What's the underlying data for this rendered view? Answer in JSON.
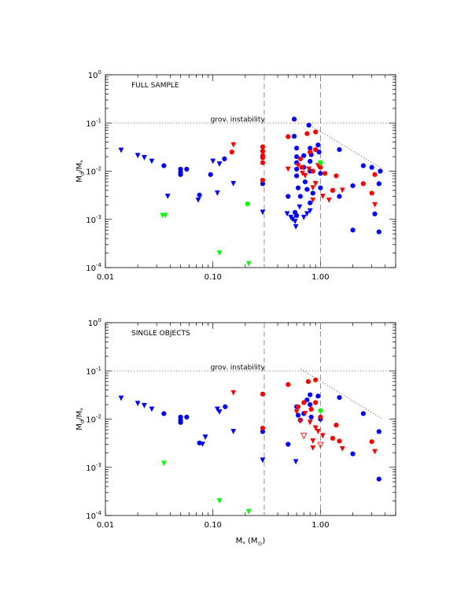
{
  "chart_data": [
    {
      "type": "scatter",
      "annotation": "FULL SAMPLE",
      "ylabel": "M_d/M_*",
      "xlabel": "",
      "xscale": "log",
      "yscale": "log",
      "xlim": [
        0.01,
        5.0
      ],
      "ylim": [
        0.0001,
        1.0
      ],
      "x_tick_labels": [
        {
          "value": 0.01,
          "label": "0.01"
        },
        {
          "value": 0.1,
          "label": "0.10"
        },
        {
          "value": 1.0,
          "label": "1.00"
        }
      ],
      "y_tick_labels": [
        {
          "value": 1.0,
          "label": "10^0"
        },
        {
          "value": 0.1,
          "label": "10^-1"
        },
        {
          "value": 0.01,
          "label": "10^-2"
        },
        {
          "value": 0.001,
          "label": "10^-3"
        },
        {
          "value": 0.0001,
          "label": "10^-4"
        }
      ],
      "hline": {
        "y": 0.1,
        "label": "grov. instability"
      },
      "vlines": [
        0.3,
        1.0
      ],
      "diagonal_line": [
        [
          0.8,
          0.09
        ],
        [
          3.8,
          0.011
        ]
      ],
      "colors": {
        "blue": "#0000ff",
        "red": "#ff0000",
        "green": "#00ff00"
      },
      "series": [
        {
          "color": "blue",
          "marker": "circle",
          "points": [
            [
              0.035,
              0.013
            ],
            [
              0.05,
              0.011
            ],
            [
              0.05,
              0.0095
            ],
            [
              0.05,
              0.0085
            ],
            [
              0.057,
              0.011
            ],
            [
              0.075,
              0.0032
            ],
            [
              0.095,
              0.0085
            ],
            [
              0.128,
              0.018
            ],
            [
              0.29,
              0.0055
            ],
            [
              0.5,
              0.003
            ],
            [
              0.57,
              0.12
            ],
            [
              0.57,
              0.053
            ],
            [
              0.6,
              0.03
            ],
            [
              0.6,
              0.02
            ],
            [
              0.6,
              0.015
            ],
            [
              0.6,
              0.011
            ],
            [
              0.6,
              0.008
            ],
            [
              0.62,
              0.0045
            ],
            [
              0.65,
              0.003
            ],
            [
              0.58,
              0.0014
            ],
            [
              0.6,
              0.0012
            ],
            [
              0.7,
              0.021
            ],
            [
              0.7,
              0.012
            ],
            [
              0.72,
              0.006
            ],
            [
              0.75,
              0.0042
            ],
            [
              0.78,
              0.09
            ],
            [
              0.8,
              0.03
            ],
            [
              0.82,
              0.022
            ],
            [
              0.8,
              0.016
            ],
            [
              0.8,
              0.01
            ],
            [
              0.85,
              0.0035
            ],
            [
              0.8,
              0.0022
            ],
            [
              0.95,
              0.035
            ],
            [
              0.97,
              0.025
            ],
            [
              1.0,
              0.015
            ],
            [
              1.0,
              0.009
            ],
            [
              1.0,
              0.0045
            ],
            [
              1.5,
              0.028
            ],
            [
              1.5,
              0.003
            ],
            [
              2.0,
              0.005
            ],
            [
              2.0,
              0.0006
            ],
            [
              2.5,
              0.013
            ],
            [
              3.0,
              0.012
            ],
            [
              3.2,
              0.0013
            ],
            [
              3.5,
              0.0055
            ],
            [
              3.6,
              0.01
            ],
            [
              3.5,
              0.00055
            ]
          ]
        },
        {
          "color": "blue",
          "marker": "triangle-down",
          "points": [
            [
              0.014,
              0.027
            ],
            [
              0.02,
              0.021
            ],
            [
              0.023,
              0.019
            ],
            [
              0.027,
              0.016
            ],
            [
              0.038,
              0.003
            ],
            [
              0.073,
              0.0025
            ],
            [
              0.1,
              0.016
            ],
            [
              0.11,
              0.0035
            ],
            [
              0.115,
              0.014
            ],
            [
              0.155,
              0.0055
            ],
            [
              0.29,
              0.0014
            ],
            [
              0.49,
              0.0013
            ],
            [
              0.53,
              0.0011
            ],
            [
              0.55,
              0.001
            ],
            [
              0.58,
              0.0009
            ],
            [
              0.59,
              0.0007
            ],
            [
              0.64,
              0.0018
            ],
            [
              0.7,
              0.0011
            ],
            [
              0.75,
              0.0013
            ],
            [
              0.8,
              0.0015
            ]
          ]
        },
        {
          "color": "red",
          "marker": "circle",
          "points": [
            [
              0.15,
              0.025
            ],
            [
              0.29,
              0.032
            ],
            [
              0.29,
              0.026
            ],
            [
              0.29,
              0.021
            ],
            [
              0.29,
              0.019
            ],
            [
              0.29,
              0.015
            ],
            [
              0.29,
              0.0065
            ],
            [
              0.5,
              0.052
            ],
            [
              0.65,
              0.018
            ],
            [
              0.67,
              0.012
            ],
            [
              0.75,
              0.06
            ],
            [
              0.8,
              0.025
            ],
            [
              0.9,
              0.065
            ],
            [
              0.9,
              0.028
            ],
            [
              0.85,
              0.01
            ],
            [
              1.0,
              0.012
            ],
            [
              1.1,
              0.009
            ],
            [
              1.3,
              0.004
            ],
            [
              1.4,
              0.008
            ],
            [
              2.5,
              0.0055
            ],
            [
              3.0,
              0.0035
            ],
            [
              3.2,
              0.0085
            ]
          ]
        },
        {
          "color": "red",
          "marker": "triangle-down",
          "points": [
            [
              0.155,
              0.035
            ],
            [
              0.5,
              0.011
            ],
            [
              0.62,
              0.013
            ],
            [
              0.68,
              0.009
            ],
            [
              0.72,
              0.008
            ],
            [
              0.78,
              0.011
            ],
            [
              0.85,
              0.0045
            ],
            [
              0.9,
              0.0055
            ],
            [
              0.95,
              0.013
            ],
            [
              1.2,
              0.0025
            ],
            [
              1.6,
              0.004
            ],
            [
              3.2,
              0.002
            ],
            [
              1.05,
              0.003
            ],
            [
              0.85,
              0.0025
            ]
          ]
        },
        {
          "color": "green",
          "marker": "circle",
          "points": [
            [
              0.21,
              0.0021
            ],
            [
              1.0,
              0.015
            ]
          ]
        },
        {
          "color": "green",
          "marker": "triangle-down",
          "points": [
            [
              0.034,
              0.0012
            ],
            [
              0.036,
              0.0012
            ],
            [
              0.115,
              0.0002
            ],
            [
              0.215,
              0.00012
            ],
            [
              1.0,
              0.0145
            ]
          ]
        }
      ]
    },
    {
      "type": "scatter",
      "annotation": "SINGLE OBJECTS",
      "ylabel": "M_d/M_*",
      "xlabel": "M_* (M_⊙)",
      "xscale": "log",
      "yscale": "log",
      "xlim": [
        0.01,
        5.0
      ],
      "ylim": [
        0.0001,
        1.0
      ],
      "x_tick_labels": [
        {
          "value": 0.01,
          "label": "0.01"
        },
        {
          "value": 0.1,
          "label": "0.10"
        },
        {
          "value": 1.0,
          "label": "1.00"
        }
      ],
      "y_tick_labels": [
        {
          "value": 1.0,
          "label": "10^0"
        },
        {
          "value": 0.1,
          "label": "10^-1"
        },
        {
          "value": 0.01,
          "label": "10^-2"
        },
        {
          "value": 0.001,
          "label": "10^-3"
        },
        {
          "value": 0.0001,
          "label": "10^-4"
        }
      ],
      "hline": {
        "y": 0.1,
        "label": "grov. instability"
      },
      "vlines": [
        0.3,
        1.0
      ],
      "diagonal_line": [
        [
          0.65,
          0.11
        ],
        [
          3.8,
          0.01
        ]
      ],
      "colors": {
        "blue": "#0000ff",
        "red": "#ff0000",
        "green": "#00ff00"
      },
      "series": [
        {
          "color": "blue",
          "marker": "circle",
          "points": [
            [
              0.035,
              0.013
            ],
            [
              0.05,
              0.011
            ],
            [
              0.05,
              0.0095
            ],
            [
              0.05,
              0.0085
            ],
            [
              0.057,
              0.011
            ],
            [
              0.075,
              0.0032
            ],
            [
              0.13,
              0.018
            ],
            [
              0.29,
              0.0055
            ],
            [
              0.5,
              0.003
            ],
            [
              0.6,
              0.018
            ],
            [
              0.62,
              0.012
            ],
            [
              0.65,
              0.0095
            ],
            [
              0.7,
              0.013
            ],
            [
              0.75,
              0.025
            ],
            [
              0.8,
              0.032
            ],
            [
              0.8,
              0.02
            ],
            [
              0.82,
              0.011
            ],
            [
              0.95,
              0.03
            ],
            [
              1.0,
              0.01
            ],
            [
              1.5,
              0.028
            ],
            [
              2.5,
              0.013
            ],
            [
              2.0,
              0.0019
            ],
            [
              3.5,
              0.0055
            ],
            [
              3.5,
              0.00057
            ]
          ]
        },
        {
          "color": "blue",
          "marker": "triangle-down",
          "points": [
            [
              0.014,
              0.027
            ],
            [
              0.02,
              0.021
            ],
            [
              0.023,
              0.019
            ],
            [
              0.027,
              0.016
            ],
            [
              0.08,
              0.003
            ],
            [
              0.085,
              0.0042
            ],
            [
              0.11,
              0.016
            ],
            [
              0.115,
              0.014
            ],
            [
              0.155,
              0.0055
            ],
            [
              0.29,
              0.0014
            ],
            [
              0.59,
              0.0013
            ]
          ]
        },
        {
          "color": "red",
          "marker": "circle",
          "points": [
            [
              0.29,
              0.033
            ],
            [
              0.29,
              0.0065
            ],
            [
              0.5,
              0.052
            ],
            [
              0.62,
              0.018
            ],
            [
              0.7,
              0.022
            ],
            [
              0.77,
              0.06
            ],
            [
              0.82,
              0.016
            ],
            [
              0.9,
              0.065
            ],
            [
              0.9,
              0.022
            ],
            [
              1.0,
              0.011
            ],
            [
              1.3,
              0.004
            ],
            [
              1.4,
              0.0075
            ],
            [
              1.5,
              0.0035
            ],
            [
              3.0,
              0.0034
            ]
          ]
        },
        {
          "color": "red",
          "marker": "triangle-down",
          "points": [
            [
              0.155,
              0.035
            ],
            [
              0.6,
              0.014
            ],
            [
              0.65,
              0.009
            ],
            [
              0.72,
              0.013
            ],
            [
              0.8,
              0.0085
            ],
            [
              0.85,
              0.0035
            ],
            [
              0.9,
              0.0065
            ],
            [
              0.95,
              0.0055
            ],
            [
              1.05,
              0.0045
            ],
            [
              1.6,
              0.0024
            ],
            [
              3.2,
              0.0021
            ],
            [
              0.85,
              0.0025
            ]
          ]
        },
        {
          "color": "red",
          "marker": "triangle-down-open",
          "points": [
            [
              0.7,
              0.0045
            ],
            [
              1.0,
              0.0029
            ]
          ]
        },
        {
          "color": "green",
          "marker": "circle",
          "points": [
            [
              1.0,
              0.015
            ]
          ]
        },
        {
          "color": "green",
          "marker": "triangle-down",
          "points": [
            [
              0.035,
              0.0012
            ],
            [
              0.115,
              0.0002
            ],
            [
              0.215,
              0.00012
            ]
          ]
        }
      ]
    }
  ]
}
